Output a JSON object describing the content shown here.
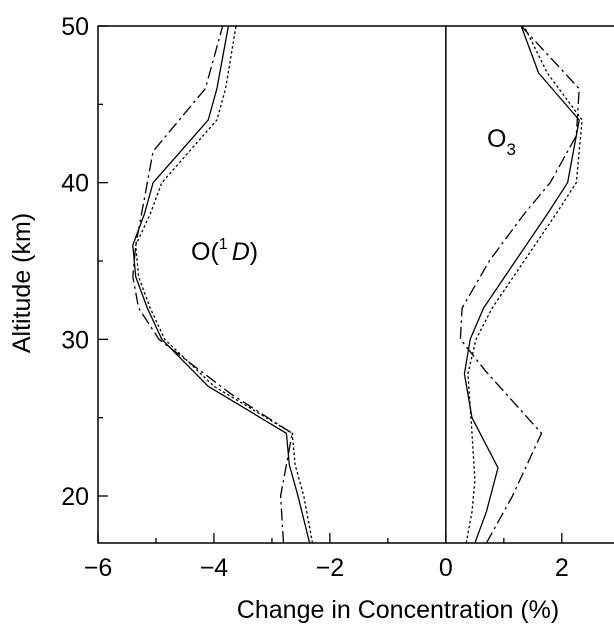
{
  "chart_data": {
    "type": "line",
    "xlabel": "Change in Concentration (%)",
    "ylabel": "Altitude (km)",
    "xlim": [
      -6,
      2.9
    ],
    "ylim": [
      17,
      50
    ],
    "xticks": [
      -6,
      -4,
      -2,
      0,
      2
    ],
    "xtick_labels": [
      "−6",
      "−4",
      "−2",
      "0",
      "2"
    ],
    "yticks": [
      20,
      30,
      40,
      50
    ],
    "ytick_labels": [
      "20",
      "30",
      "40",
      "50"
    ],
    "grid": false,
    "annotations": {
      "o1d": {
        "pre": "O(",
        "sup": "1",
        "ital": "D",
        "post": ")"
      },
      "o3": {
        "main": "O",
        "sub": "3"
      }
    },
    "series": [
      {
        "group": "O(1D)",
        "style": "solid",
        "points": [
          [
            -2.35,
            17
          ],
          [
            -2.55,
            20
          ],
          [
            -2.7,
            22
          ],
          [
            -2.75,
            24
          ],
          [
            -4.1,
            27
          ],
          [
            -4.9,
            30
          ],
          [
            -5.15,
            32
          ],
          [
            -5.35,
            34
          ],
          [
            -5.4,
            36
          ],
          [
            -5.2,
            38
          ],
          [
            -5.05,
            40
          ],
          [
            -4.1,
            44
          ],
          [
            -3.95,
            46
          ],
          [
            -3.75,
            50
          ]
        ]
      },
      {
        "group": "O(1D)",
        "style": "dotted",
        "points": [
          [
            -2.3,
            17
          ],
          [
            -2.45,
            20
          ],
          [
            -2.6,
            22
          ],
          [
            -2.65,
            24
          ],
          [
            -4.0,
            27
          ],
          [
            -4.85,
            30
          ],
          [
            -5.1,
            32
          ],
          [
            -5.3,
            34
          ],
          [
            -5.35,
            36
          ],
          [
            -5.1,
            38
          ],
          [
            -4.9,
            40
          ],
          [
            -3.95,
            44
          ],
          [
            -3.8,
            46
          ],
          [
            -3.62,
            50
          ]
        ]
      },
      {
        "group": "O(1D)",
        "style": "dashdot",
        "points": [
          [
            -2.8,
            17
          ],
          [
            -2.85,
            20
          ],
          [
            -2.75,
            22
          ],
          [
            -2.65,
            24
          ],
          [
            -3.7,
            26.5
          ],
          [
            -4.95,
            30
          ],
          [
            -5.3,
            32
          ],
          [
            -5.4,
            34
          ],
          [
            -5.35,
            36
          ],
          [
            -5.25,
            38
          ],
          [
            -5.05,
            42
          ],
          [
            -4.15,
            46
          ],
          [
            -3.85,
            50
          ]
        ]
      },
      {
        "group": "O3",
        "style": "solid",
        "points": [
          [
            0.5,
            17
          ],
          [
            0.7,
            19
          ],
          [
            0.9,
            21.8
          ],
          [
            0.45,
            25
          ],
          [
            0.32,
            27.8
          ],
          [
            0.42,
            30
          ],
          [
            0.65,
            32
          ],
          [
            1.2,
            35
          ],
          [
            1.75,
            38
          ],
          [
            2.1,
            40
          ],
          [
            2.3,
            44
          ],
          [
            1.6,
            47
          ],
          [
            1.3,
            50
          ]
        ]
      },
      {
        "group": "O3",
        "style": "dotted",
        "points": [
          [
            0.35,
            17
          ],
          [
            0.45,
            19
          ],
          [
            0.5,
            21
          ],
          [
            0.45,
            24
          ],
          [
            0.38,
            27.8
          ],
          [
            0.52,
            30
          ],
          [
            0.8,
            32
          ],
          [
            1.35,
            35
          ],
          [
            1.9,
            38
          ],
          [
            2.25,
            40
          ],
          [
            2.35,
            44
          ],
          [
            1.75,
            47
          ],
          [
            1.35,
            50
          ]
        ]
      },
      {
        "group": "O3",
        "style": "dashdot",
        "points": [
          [
            0.7,
            17
          ],
          [
            1.15,
            20
          ],
          [
            1.65,
            24
          ],
          [
            0.68,
            28
          ],
          [
            0.25,
            30
          ],
          [
            0.28,
            32
          ],
          [
            0.75,
            35
          ],
          [
            1.35,
            38
          ],
          [
            1.8,
            40
          ],
          [
            2.25,
            43
          ],
          [
            2.3,
            46
          ],
          [
            1.55,
            49
          ],
          [
            1.3,
            50
          ]
        ]
      }
    ]
  }
}
